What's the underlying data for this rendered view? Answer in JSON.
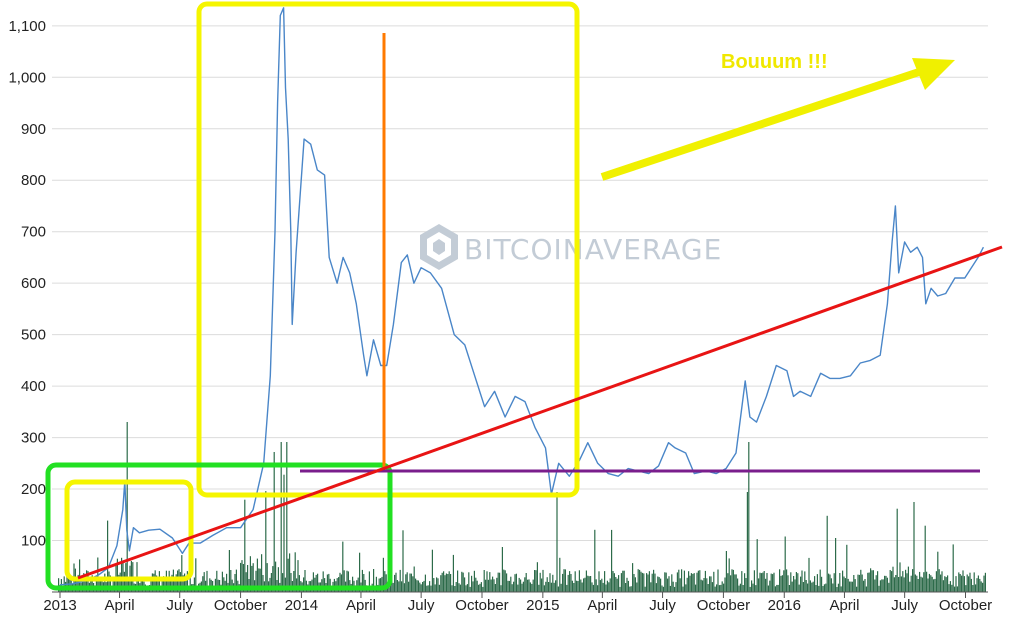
{
  "chart_data": {
    "type": "line",
    "title": "",
    "xlabel": "",
    "ylabel": "",
    "x_ticks": [
      "2013",
      "April",
      "July",
      "October",
      "2014",
      "April",
      "July",
      "October",
      "2015",
      "April",
      "July",
      "October",
      "2016",
      "April",
      "July",
      "October"
    ],
    "y_ticks": [
      "100",
      "200",
      "300",
      "400",
      "500",
      "600",
      "700",
      "800",
      "900",
      "1,000",
      "1,100"
    ],
    "ylim": [
      0,
      1140
    ],
    "xlim": [
      "2013-01-01",
      "2016-11-01"
    ],
    "grid": true,
    "series": [
      {
        "role": "price",
        "color": "#4a86c8",
        "points": [
          [
            "2013-01-01",
            14
          ],
          [
            "2013-01-20",
            16
          ],
          [
            "2013-02-10",
            22
          ],
          [
            "2013-02-28",
            33
          ],
          [
            "2013-03-15",
            47
          ],
          [
            "2013-03-28",
            90
          ],
          [
            "2013-04-06",
            160
          ],
          [
            "2013-04-09",
            215
          ],
          [
            "2013-04-12",
            120
          ],
          [
            "2013-04-16",
            80
          ],
          [
            "2013-04-22",
            125
          ],
          [
            "2013-05-01",
            115
          ],
          [
            "2013-05-15",
            120
          ],
          [
            "2013-06-01",
            122
          ],
          [
            "2013-06-20",
            105
          ],
          [
            "2013-07-05",
            75
          ],
          [
            "2013-07-15",
            95
          ],
          [
            "2013-08-01",
            95
          ],
          [
            "2013-08-20",
            110
          ],
          [
            "2013-09-10",
            125
          ],
          [
            "2013-10-01",
            125
          ],
          [
            "2013-10-20",
            160
          ],
          [
            "2013-11-05",
            250
          ],
          [
            "2013-11-15",
            420
          ],
          [
            "2013-11-22",
            700
          ],
          [
            "2013-11-26",
            950
          ],
          [
            "2013-11-30",
            1120
          ],
          [
            "2013-12-05",
            1135
          ],
          [
            "2013-12-08",
            980
          ],
          [
            "2013-12-12",
            880
          ],
          [
            "2013-12-16",
            700
          ],
          [
            "2013-12-18",
            520
          ],
          [
            "2013-12-24",
            660
          ],
          [
            "2014-01-05",
            880
          ],
          [
            "2014-01-15",
            870
          ],
          [
            "2014-01-25",
            820
          ],
          [
            "2014-02-05",
            810
          ],
          [
            "2014-02-12",
            650
          ],
          [
            "2014-02-24",
            600
          ],
          [
            "2014-03-05",
            650
          ],
          [
            "2014-03-15",
            620
          ],
          [
            "2014-03-25",
            560
          ],
          [
            "2014-04-05",
            460
          ],
          [
            "2014-04-10",
            420
          ],
          [
            "2014-04-20",
            490
          ],
          [
            "2014-05-01",
            440
          ],
          [
            "2014-05-10",
            440
          ],
          [
            "2014-05-20",
            520
          ],
          [
            "2014-06-01",
            640
          ],
          [
            "2014-06-10",
            655
          ],
          [
            "2014-06-20",
            600
          ],
          [
            "2014-07-01",
            630
          ],
          [
            "2014-07-15",
            620
          ],
          [
            "2014-08-01",
            590
          ],
          [
            "2014-08-20",
            500
          ],
          [
            "2014-09-05",
            480
          ],
          [
            "2014-09-20",
            420
          ],
          [
            "2014-10-05",
            360
          ],
          [
            "2014-10-20",
            390
          ],
          [
            "2014-11-05",
            340
          ],
          [
            "2014-11-20",
            380
          ],
          [
            "2014-12-05",
            370
          ],
          [
            "2014-12-20",
            320
          ],
          [
            "2015-01-05",
            280
          ],
          [
            "2015-01-14",
            190
          ],
          [
            "2015-01-25",
            250
          ],
          [
            "2015-02-10",
            225
          ],
          [
            "2015-02-25",
            255
          ],
          [
            "2015-03-10",
            290
          ],
          [
            "2015-03-25",
            250
          ],
          [
            "2015-04-10",
            230
          ],
          [
            "2015-04-25",
            225
          ],
          [
            "2015-05-10",
            240
          ],
          [
            "2015-05-25",
            235
          ],
          [
            "2015-06-10",
            230
          ],
          [
            "2015-06-25",
            245
          ],
          [
            "2015-07-10",
            290
          ],
          [
            "2015-07-20",
            280
          ],
          [
            "2015-08-05",
            270
          ],
          [
            "2015-08-18",
            230
          ],
          [
            "2015-09-05",
            235
          ],
          [
            "2015-09-20",
            230
          ],
          [
            "2015-10-05",
            240
          ],
          [
            "2015-10-20",
            270
          ],
          [
            "2015-11-03",
            410
          ],
          [
            "2015-11-10",
            340
          ],
          [
            "2015-11-20",
            330
          ],
          [
            "2015-12-05",
            380
          ],
          [
            "2015-12-20",
            440
          ],
          [
            "2016-01-05",
            430
          ],
          [
            "2016-01-15",
            380
          ],
          [
            "2016-01-25",
            390
          ],
          [
            "2016-02-10",
            380
          ],
          [
            "2016-02-25",
            425
          ],
          [
            "2016-03-10",
            415
          ],
          [
            "2016-03-25",
            415
          ],
          [
            "2016-04-10",
            420
          ],
          [
            "2016-04-25",
            445
          ],
          [
            "2016-05-10",
            450
          ],
          [
            "2016-05-25",
            460
          ],
          [
            "2016-06-05",
            560
          ],
          [
            "2016-06-12",
            680
          ],
          [
            "2016-06-17",
            750
          ],
          [
            "2016-06-22",
            620
          ],
          [
            "2016-07-01",
            680
          ],
          [
            "2016-07-10",
            660
          ],
          [
            "2016-07-20",
            670
          ],
          [
            "2016-07-28",
            650
          ],
          [
            "2016-08-02",
            560
          ],
          [
            "2016-08-10",
            590
          ],
          [
            "2016-08-20",
            575
          ],
          [
            "2016-09-01",
            580
          ],
          [
            "2016-09-15",
            610
          ],
          [
            "2016-09-30",
            610
          ],
          [
            "2016-10-10",
            630
          ],
          [
            "2016-10-20",
            650
          ],
          [
            "2016-10-28",
            670
          ]
        ]
      }
    ],
    "volume_bars": {
      "color": "#2d6b4a"
    }
  },
  "watermark": {
    "text": "BITCOINAVERAGE",
    "color": "#c3ccd6"
  },
  "annotations": {
    "label_text": "Bouuum !!!",
    "trend_line_color": "#e81414",
    "horizontal_line_color": "#7a1e8c",
    "vertical_line_color": "#ff7a00",
    "highlight_box_color": "#f5f500",
    "green_box_color": "#22e022",
    "arrow_color": "#f0f000"
  }
}
